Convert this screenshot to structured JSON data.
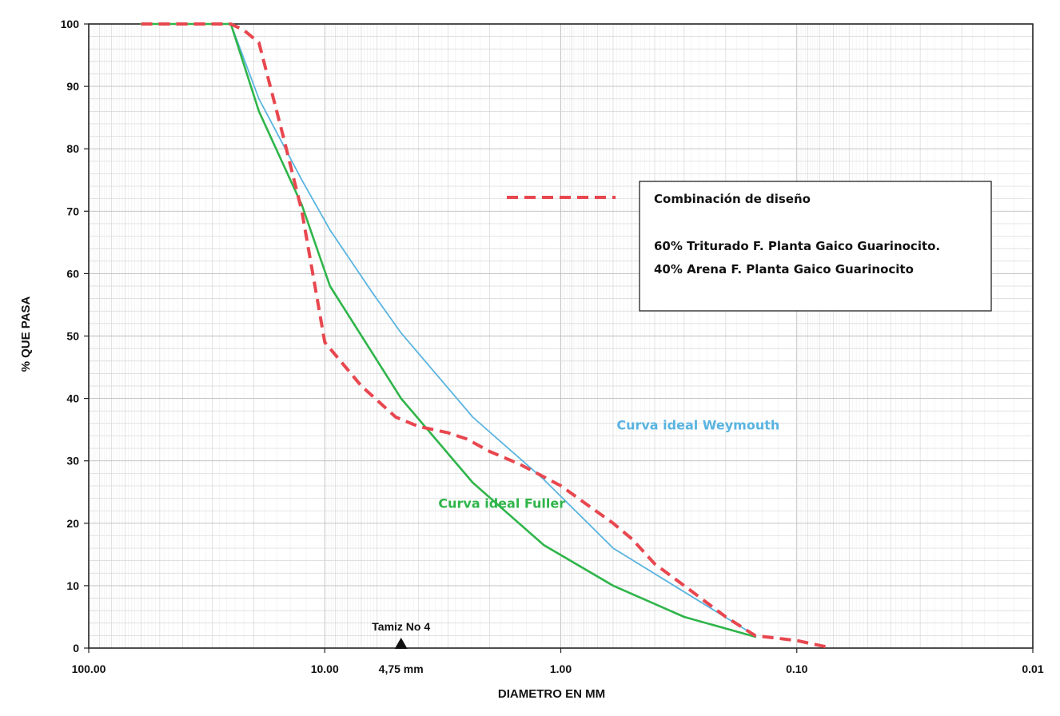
{
  "chart_data": {
    "type": "line",
    "xlabel": "DIAMETRO EN  MM",
    "ylabel": "% QUE PASA",
    "x_scale": "log",
    "x_reversed": true,
    "xlim": [
      100,
      0.01
    ],
    "ylim": [
      0,
      100
    ],
    "x_ticks": [
      {
        "value": 100,
        "label": "100.00"
      },
      {
        "value": 10,
        "label": "10.00"
      },
      {
        "value": 1,
        "label": "1.00"
      },
      {
        "value": 0.1,
        "label": "0.10"
      },
      {
        "value": 0.01,
        "label": "0.01"
      }
    ],
    "y_ticks": [
      0,
      10,
      20,
      30,
      40,
      50,
      60,
      70,
      80,
      90,
      100
    ],
    "grid": true,
    "series": [
      {
        "name": "Combinación de diseño",
        "color": "#e8474f",
        "dashed": true,
        "points": [
          [
            60,
            100
          ],
          [
            25,
            100
          ],
          [
            22,
            99
          ],
          [
            19,
            97
          ],
          [
            15,
            82
          ],
          [
            12.5,
            70
          ],
          [
            10,
            49
          ],
          [
            7,
            42
          ],
          [
            5,
            37
          ],
          [
            4,
            35.5
          ],
          [
            3,
            34.5
          ],
          [
            2.5,
            33.5
          ],
          [
            2,
            31.5
          ],
          [
            1.5,
            29.5
          ],
          [
            1,
            26
          ],
          [
            0.6,
            20
          ],
          [
            0.5,
            17.5
          ],
          [
            0.4,
            13.5
          ],
          [
            0.3,
            10
          ],
          [
            0.2,
            5
          ],
          [
            0.15,
            2
          ],
          [
            0.1,
            1.2
          ],
          [
            0.075,
            0.2
          ]
        ]
      },
      {
        "name": "Curva ideal Weymouth",
        "color": "#5ab4e0",
        "dashed": false,
        "points": [
          [
            60,
            100
          ],
          [
            25,
            100
          ],
          [
            19,
            88
          ],
          [
            12.5,
            75
          ],
          [
            9.5,
            67
          ],
          [
            6.3,
            57
          ],
          [
            4.75,
            50.5
          ],
          [
            2.36,
            37
          ],
          [
            1.18,
            27
          ],
          [
            0.6,
            16
          ],
          [
            0.3,
            9
          ],
          [
            0.15,
            2
          ]
        ]
      },
      {
        "name": "Curva ideal Fuller",
        "color": "#2fb54a",
        "dashed": false,
        "points": [
          [
            60,
            100
          ],
          [
            25,
            100
          ],
          [
            19,
            86
          ],
          [
            12.5,
            71
          ],
          [
            9.5,
            58
          ],
          [
            4.75,
            40
          ],
          [
            2.36,
            26.5
          ],
          [
            1.18,
            16.5
          ],
          [
            0.6,
            10
          ],
          [
            0.3,
            5
          ],
          [
            0.15,
            1.8
          ]
        ]
      }
    ],
    "legend": {
      "placement": "right-middle",
      "title": "Combinación de diseño",
      "lines": [
        "60% Triturado F. Planta Gaico Guarinocito.",
        "40% Arena F. Planta Gaico Guarinocito"
      ]
    },
    "annotations": [
      {
        "text": "Curva ideal Weymouth",
        "color": "#5ab4e0",
        "x": 0.58,
        "y": 35
      },
      {
        "text": "Curva ideal Fuller",
        "color": "#2fb54a",
        "x": 3.3,
        "y": 22.5
      }
    ],
    "marker": {
      "value": 4.75,
      "label_top": "Tamiz No 4",
      "label_bottom": "4,75 mm"
    }
  }
}
